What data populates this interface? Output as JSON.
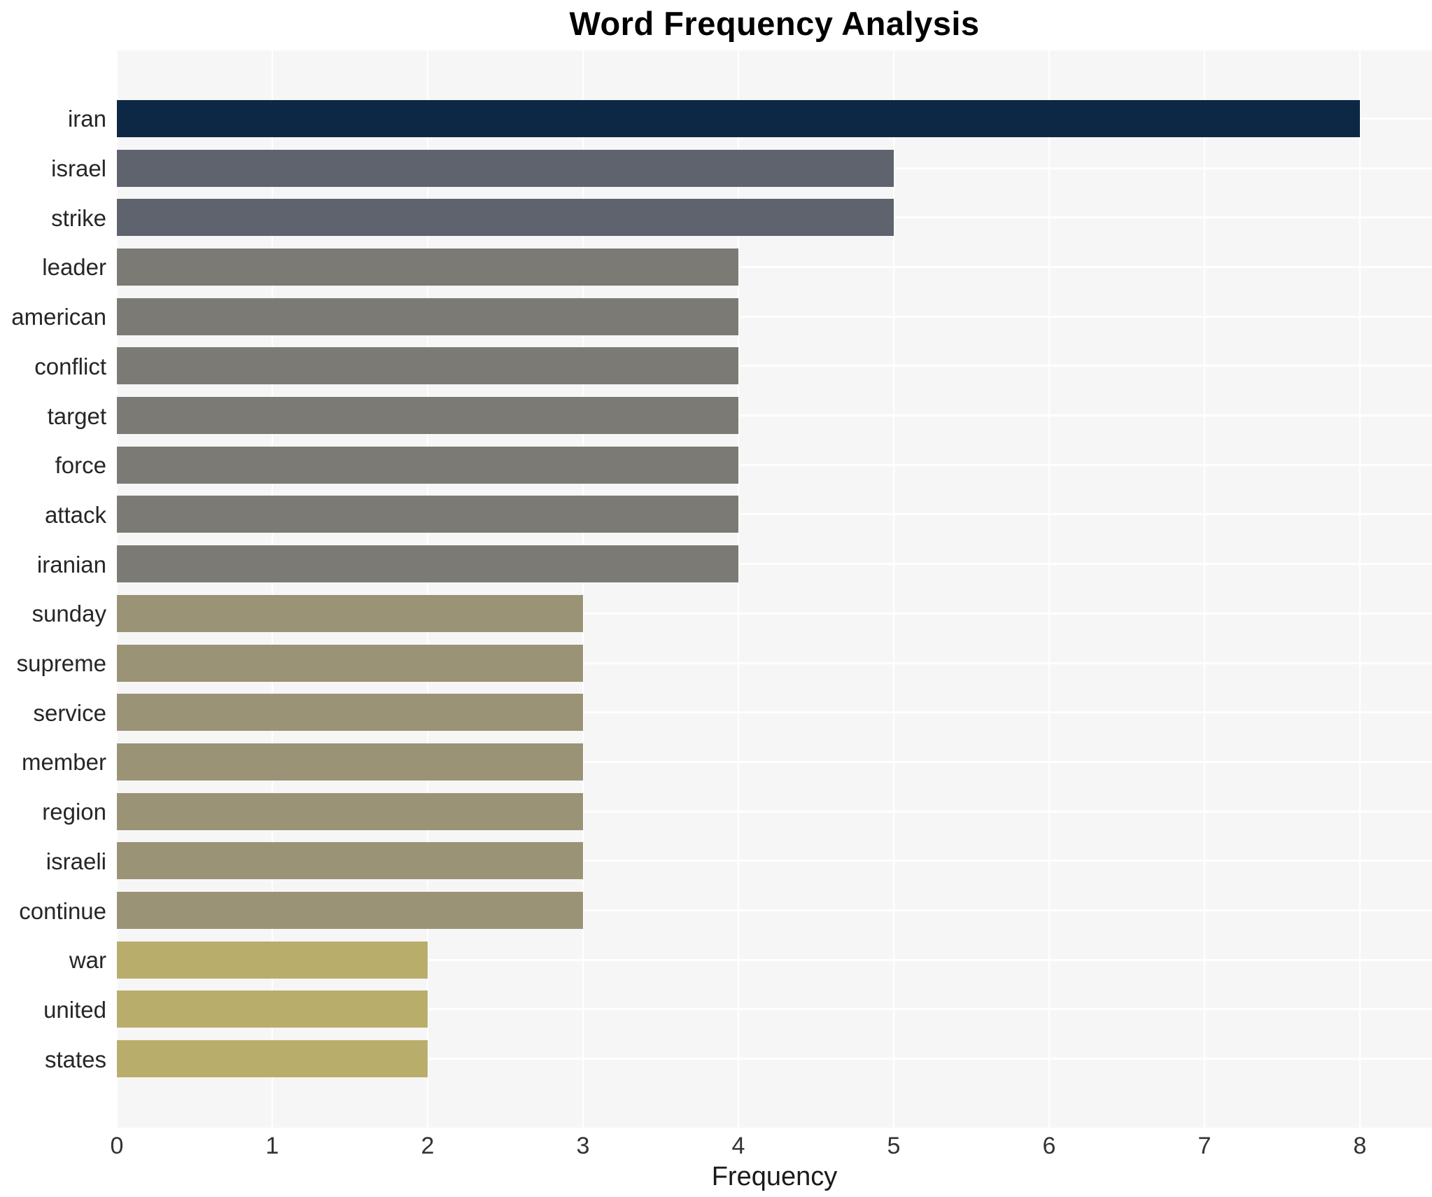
{
  "chart_data": {
    "type": "bar",
    "orientation": "horizontal",
    "title": "Word Frequency Analysis",
    "xlabel": "Frequency",
    "ylabel": "",
    "xlim": [
      0,
      8.46
    ],
    "x_ticks": [
      0,
      1,
      2,
      3,
      4,
      5,
      6,
      7,
      8
    ],
    "grid": true,
    "legend": "none",
    "panel_background": "#f6f6f7",
    "grid_color": "#ffffff",
    "categories": [
      "iran",
      "israel",
      "strike",
      "leader",
      "american",
      "conflict",
      "target",
      "force",
      "attack",
      "iranian",
      "sunday",
      "supreme",
      "service",
      "member",
      "region",
      "israeli",
      "continue",
      "war",
      "united",
      "states"
    ],
    "values": [
      8,
      5,
      5,
      4,
      4,
      4,
      4,
      4,
      4,
      4,
      3,
      3,
      3,
      3,
      3,
      3,
      3,
      2,
      2,
      2
    ],
    "bar_colors": [
      "#0d2845",
      "#5e636e",
      "#5e636e",
      "#7c7a74",
      "#7c7a74",
      "#7c7a74",
      "#7c7a74",
      "#7c7a74",
      "#7c7a74",
      "#7c7a74",
      "#9a9376",
      "#9a9376",
      "#9a9376",
      "#9a9376",
      "#9a9376",
      "#9a9376",
      "#9a9376",
      "#b9ad6c",
      "#b9ad6c",
      "#b9ad6c"
    ]
  }
}
